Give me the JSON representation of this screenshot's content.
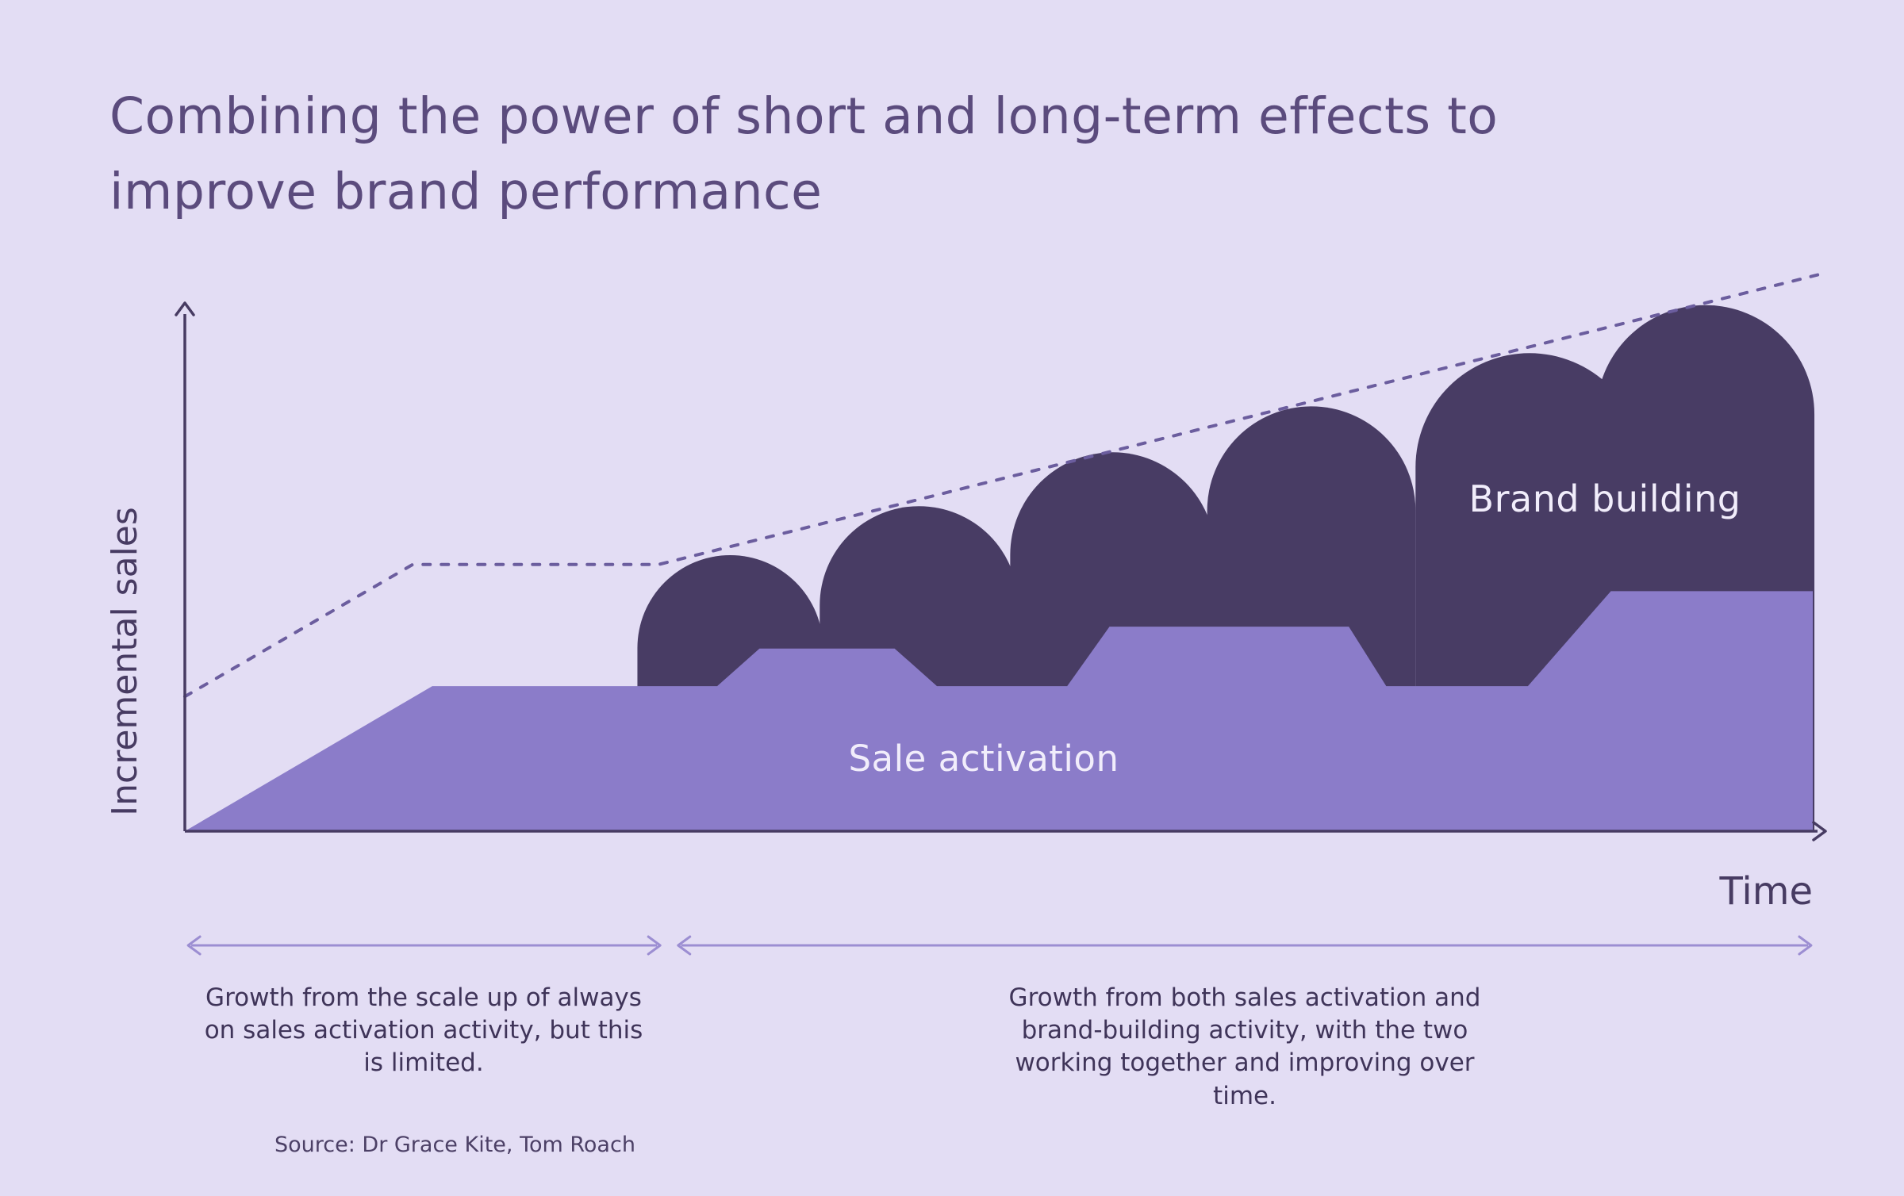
{
  "source": {
    "text": "Source: Dr Grace Kite, Tom Roach"
  },
  "colors": {
    "background": "#e3ddf4",
    "title-text": "#5b4b7d",
    "axis": "#473b62",
    "body-text": "#3f3459",
    "label-on-fill": "#f1edfb",
    "range-arrow": "#9c8ed2",
    "source-text": "#4c4066"
  },
  "chart_data": {
    "type": "area",
    "title": "Combining the power of short and long-term effects to improve brand performance",
    "xlabel": "Time",
    "ylabel": "Incremental sales",
    "x_range": [
      0,
      100
    ],
    "y_range": [
      0,
      108
    ],
    "axes_numeric": false,
    "grid": false,
    "legend": "labels-on-shapes",
    "series": [
      {
        "name": "Sale activation",
        "type": "area",
        "color": "#8b7cc9",
        "points": [
          [
            0,
            0
          ],
          [
            15.2,
            27.8
          ],
          [
            32.7,
            27.8
          ],
          [
            35.3,
            35
          ],
          [
            43.6,
            35
          ],
          [
            46.2,
            27.8
          ],
          [
            54.2,
            27.8
          ],
          [
            56.8,
            39.2
          ],
          [
            71.5,
            39.2
          ],
          [
            73.8,
            27.8
          ],
          [
            82.5,
            27.8
          ],
          [
            87.6,
            46
          ],
          [
            100,
            46
          ],
          [
            100,
            0
          ]
        ]
      },
      {
        "name": "Brand building",
        "type": "bumps",
        "color": "#483c64",
        "bumps": [
          {
            "cx": 33.5,
            "r": 5.7,
            "top": 52.9
          },
          {
            "cx": 45.1,
            "r": 6.1,
            "top": 62.3
          },
          {
            "cx": 57.0,
            "r": 6.3,
            "top": 72.6
          },
          {
            "cx": 69.2,
            "r": 6.4,
            "top": 81.4
          },
          {
            "cx": 82.6,
            "r": 7.0,
            "top": 91.6
          },
          {
            "cx": 93.4,
            "r": 6.7,
            "top": 100.8
          }
        ]
      },
      {
        "type": "dashed-line",
        "color": "#6b5d9e",
        "points": [
          [
            0,
            25.8
          ],
          [
            14,
            51.1
          ],
          [
            29.1,
            51.1
          ],
          [
            100.3,
            106.6
          ]
        ]
      }
    ],
    "annotations": [
      {
        "label": "Growth from the scale up of always on sales activation activity, but this is limited.",
        "x_start": 0.2,
        "x_end": 29.2
      },
      {
        "label": "Growth from both sales activation and brand-building activity, with the two working together and improving over time.",
        "x_start": 30.3,
        "x_end": 99.9
      }
    ]
  }
}
